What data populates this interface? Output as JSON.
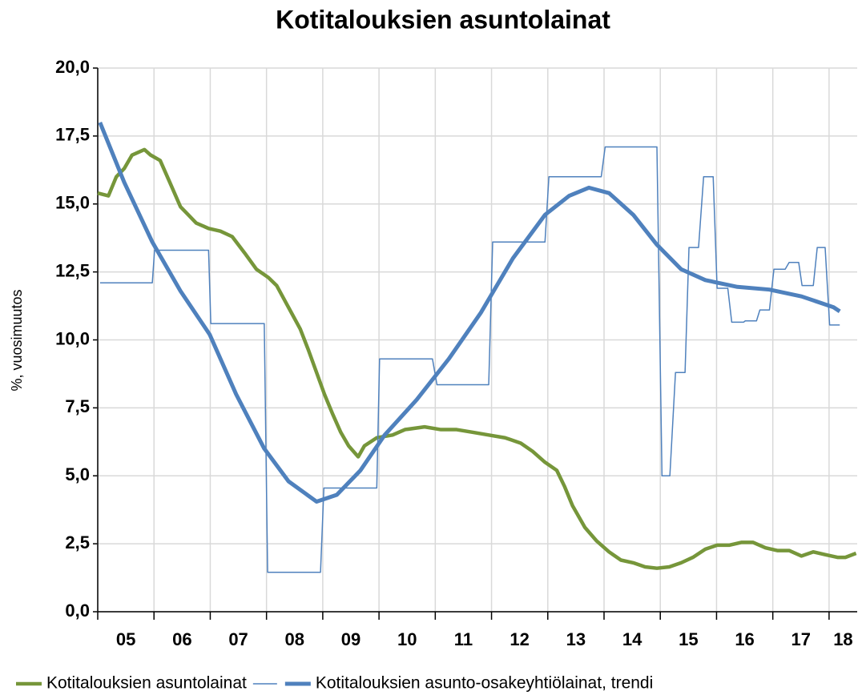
{
  "chart_data": {
    "type": "line",
    "title": "Kotitalouksien asuntolainat",
    "ylabel": "%, vuosimuutos",
    "xlim": [
      5,
      18.5
    ],
    "xticks": [
      5,
      6,
      7,
      8,
      9,
      10,
      11,
      12,
      13,
      14,
      15,
      16,
      17,
      18
    ],
    "xtick_labels": [
      {
        "value": 5.5,
        "label": "05"
      },
      {
        "value": 6.5,
        "label": "06"
      },
      {
        "value": 7.5,
        "label": "07"
      },
      {
        "value": 8.5,
        "label": "08"
      },
      {
        "value": 9.5,
        "label": "09"
      },
      {
        "value": 10.5,
        "label": "10"
      },
      {
        "value": 11.5,
        "label": "11"
      },
      {
        "value": 12.5,
        "label": "12"
      },
      {
        "value": 13.5,
        "label": "13"
      },
      {
        "value": 14.5,
        "label": "14"
      },
      {
        "value": 15.5,
        "label": "15"
      },
      {
        "value": 16.5,
        "label": "16"
      },
      {
        "value": 17.5,
        "label": "17"
      },
      {
        "value": 18.25,
        "label": "18"
      }
    ],
    "ylim": [
      0,
      20
    ],
    "yticks": [
      {
        "value": 0,
        "label": "0,0"
      },
      {
        "value": 2.5,
        "label": "2,5"
      },
      {
        "value": 5,
        "label": "5,0"
      },
      {
        "value": 7.5,
        "label": "7,5"
      },
      {
        "value": 10,
        "label": "10,0"
      },
      {
        "value": 12.5,
        "label": "12,5"
      },
      {
        "value": 15,
        "label": "15,0"
      },
      {
        "value": 17.5,
        "label": "17,5"
      },
      {
        "value": 20,
        "label": "20,0"
      }
    ],
    "grid": true,
    "legend": "bottom",
    "series": [
      {
        "name": "Kotitalouksien asuntolainat",
        "color": "#76963a",
        "width": 4.5,
        "x": [
          5.0,
          5.19,
          5.33,
          5.47,
          5.61,
          5.83,
          5.94,
          6.11,
          6.28,
          6.47,
          6.61,
          6.75,
          6.97,
          7.18,
          7.39,
          7.61,
          7.82,
          8.03,
          8.18,
          8.39,
          8.6,
          8.75,
          8.89,
          9.03,
          9.17,
          9.32,
          9.46,
          9.63,
          9.74,
          9.96,
          10.24,
          10.46,
          10.81,
          11.1,
          11.38,
          11.67,
          11.95,
          12.24,
          12.52,
          12.73,
          12.95,
          13.16,
          13.3,
          13.44,
          13.66,
          13.87,
          14.09,
          14.3,
          14.52,
          14.73,
          14.94,
          15.16,
          15.37,
          15.58,
          15.8,
          16.01,
          16.23,
          16.44,
          16.65,
          16.87,
          17.08,
          17.29,
          17.51,
          17.72,
          17.93,
          18.15,
          18.29,
          18.48
        ],
        "values": [
          15.4,
          15.3,
          16.0,
          16.3,
          16.8,
          17.0,
          16.8,
          16.6,
          15.8,
          14.9,
          14.6,
          14.3,
          14.1,
          14.0,
          13.8,
          13.2,
          12.6,
          12.3,
          12.0,
          11.2,
          10.4,
          9.6,
          8.8,
          8.0,
          7.3,
          6.6,
          6.1,
          5.7,
          6.1,
          6.4,
          6.5,
          6.7,
          6.8,
          6.7,
          6.7,
          6.6,
          6.5,
          6.4,
          6.2,
          5.9,
          5.5,
          5.2,
          4.6,
          3.9,
          3.1,
          2.6,
          2.2,
          1.9,
          1.8,
          1.65,
          1.6,
          1.65,
          1.8,
          2.0,
          2.3,
          2.45,
          2.45,
          2.55,
          2.55,
          2.35,
          2.25,
          2.25,
          2.05,
          2.2,
          2.1,
          2.0,
          2.0,
          2.15
        ]
      },
      {
        "color": "#4f81bd",
        "width": 1.5,
        "x": [
          5.04,
          5.97,
          6.01,
          6.97,
          7.01,
          7.96,
          8.02,
          8.96,
          9.02,
          9.96,
          10.01,
          10.95,
          11.03,
          11.95,
          12.02,
          12.95,
          13.02,
          13.95,
          14.02,
          14.94,
          15.03,
          15.17,
          15.27,
          15.44,
          15.51,
          15.68,
          15.77,
          15.94,
          16.01,
          16.2,
          16.27,
          16.48,
          16.51,
          16.71,
          16.77,
          16.94,
          17.02,
          17.22,
          17.29,
          17.46,
          17.52,
          17.72,
          17.79,
          17.93,
          18.01,
          18.19
        ],
        "values": [
          12.1,
          12.1,
          13.3,
          13.3,
          10.6,
          10.6,
          1.45,
          1.45,
          4.55,
          4.55,
          9.3,
          9.3,
          8.35,
          8.35,
          13.6,
          13.6,
          16.0,
          16.0,
          17.1,
          17.1,
          5.0,
          5.0,
          8.8,
          8.8,
          13.4,
          13.4,
          16.0,
          16.0,
          11.9,
          11.9,
          10.65,
          10.65,
          10.7,
          10.7,
          11.1,
          11.1,
          12.6,
          12.6,
          12.85,
          12.85,
          12.0,
          12.0,
          13.4,
          13.4,
          10.55,
          10.55
        ]
      },
      {
        "name": "Kotitalouksien asunto-osakeyhtiölainat, trendi",
        "color": "#4f81bd",
        "width": 5,
        "x": [
          5.04,
          5.47,
          5.97,
          6.47,
          6.99,
          7.46,
          7.96,
          8.39,
          8.89,
          9.25,
          9.67,
          10.1,
          10.67,
          11.24,
          11.81,
          12.38,
          12.95,
          13.38,
          13.73,
          14.09,
          14.52,
          14.94,
          15.37,
          15.8,
          16.37,
          16.94,
          17.51,
          18.08,
          18.19
        ],
        "values": [
          18.0,
          15.8,
          13.6,
          11.8,
          10.2,
          8.0,
          6.0,
          4.8,
          4.05,
          4.3,
          5.2,
          6.5,
          7.8,
          9.3,
          11.0,
          13.0,
          14.6,
          15.3,
          15.6,
          15.4,
          14.6,
          13.5,
          12.6,
          12.2,
          11.95,
          11.85,
          11.6,
          11.2,
          11.05
        ]
      }
    ]
  }
}
